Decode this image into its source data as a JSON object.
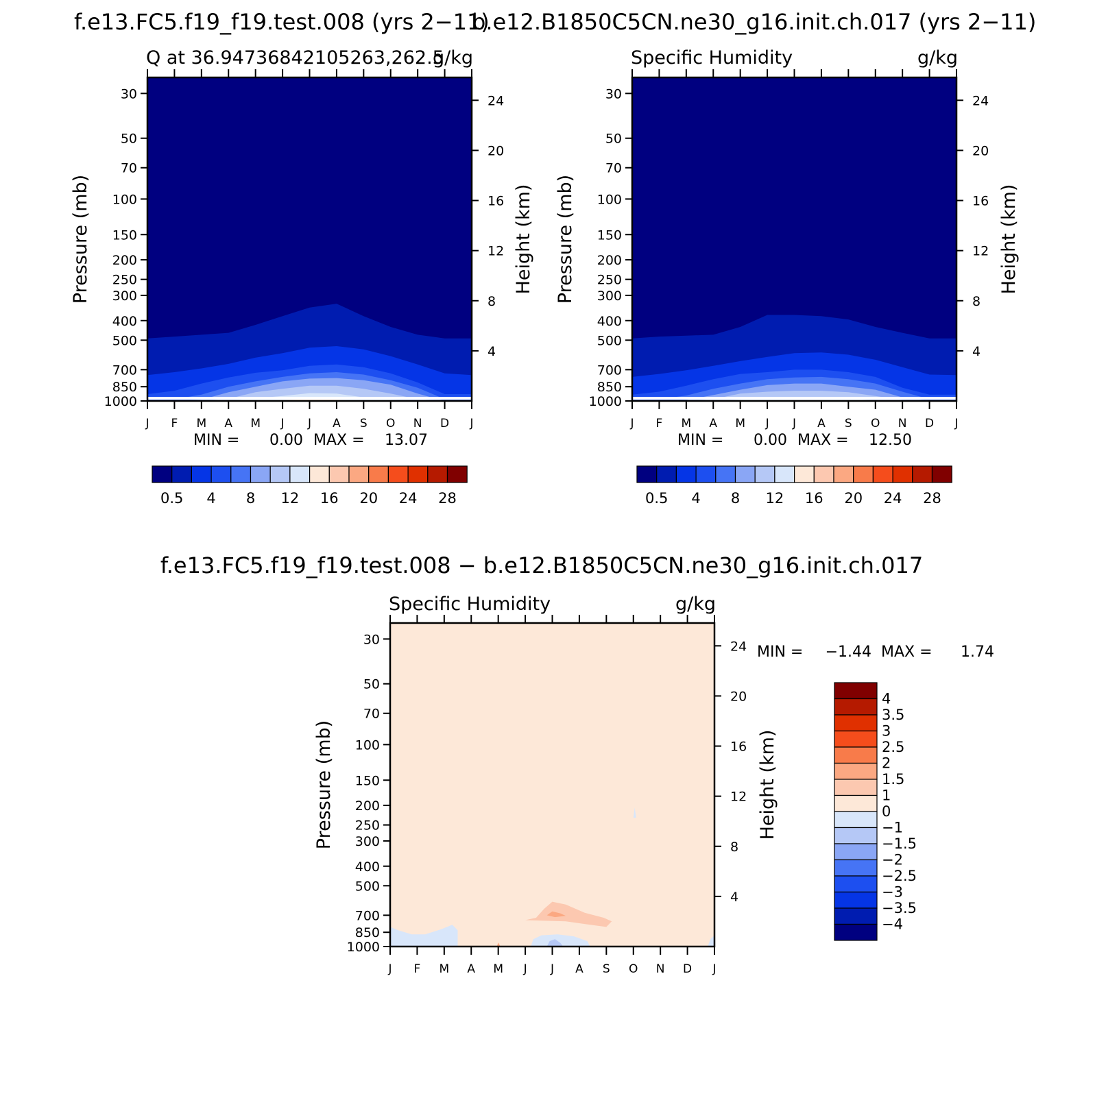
{
  "page": {
    "title_left": "f.e13.FC5.f19_f19.test.008 (yrs 2-11)",
    "title_right": "b.e12.B1850C5CN.ne30_g16.init.ch.017 (yrs 2-11)",
    "title_diff": "f.e13.FC5.f19_f19.test.008 - b.e12.B1850C5CN.ne30_g16.init.ch.017"
  },
  "colors": {
    "abs_levels": [
      "#000080",
      "#001cb0",
      "#0535e6",
      "#1d4ff0",
      "#4674f5",
      "#8aa6f5",
      "#b5c8f6",
      "#d8e6fa",
      "#fde8d8",
      "#fcc8b0",
      "#fba882",
      "#f87b4a",
      "#f54d1c",
      "#e03000",
      "#b51a00",
      "#800000"
    ],
    "diff_levels": [
      "#000080",
      "#001cb0",
      "#0535e6",
      "#1d4ff0",
      "#4674f5",
      "#8aa6f5",
      "#b5c8f6",
      "#d8e6fa",
      "#fde8d8",
      "#fcc8b0",
      "#fba882",
      "#f87b4a",
      "#f54d1c",
      "#e03000",
      "#b51a00",
      "#800000"
    ]
  },
  "chart_data": [
    {
      "type": "heatmap",
      "panel": "left",
      "title": "Q at 36.94736842105263,262.5",
      "units": "g/kg",
      "xlabel": "",
      "ylabel": "Pressure (mb)",
      "ylabel_right": "Height (km)",
      "x_ticks": [
        "J",
        "F",
        "M",
        "A",
        "M",
        "J",
        "J",
        "A",
        "S",
        "O",
        "N",
        "D",
        "J"
      ],
      "pressure_ticks": [
        30,
        50,
        70,
        100,
        150,
        200,
        250,
        300,
        400,
        500,
        700,
        850,
        1000
      ],
      "height_ticks": [
        4,
        8,
        12,
        16,
        20,
        24
      ],
      "ylim": [
        25,
        1000
      ],
      "min_label": "MIN =",
      "min_value": "0.00",
      "max_label": "MAX =",
      "max_value": "13.07",
      "contour_levels": [
        0.5,
        2,
        4,
        6,
        8,
        10,
        12,
        14,
        16,
        18,
        20,
        22,
        24,
        26,
        28
      ],
      "colorbar_labels": [
        "0.5",
        "4",
        "8",
        "12",
        "16",
        "20",
        "24",
        "28"
      ],
      "contour_tops_mb": [
        [
          490,
          480,
          470,
          460,
          420,
          380,
          345,
          330,
          380,
          430,
          470,
          490,
          490
        ],
        [
          745,
          720,
          690,
          655,
          610,
          580,
          545,
          535,
          555,
          600,
          660,
          730,
          745
        ],
        [
          925,
          890,
          820,
          765,
          725,
          705,
          670,
          660,
          680,
          730,
          810,
          925,
          925
        ],
        [
          980,
          980,
          930,
          850,
          800,
          760,
          730,
          720,
          740,
          790,
          860,
          980,
          980
        ],
        [
          1000,
          1000,
          985,
          905,
          850,
          800,
          775,
          770,
          790,
          830,
          920,
          1000,
          1000
        ],
        [
          1000,
          1000,
          1000,
          975,
          905,
          870,
          840,
          840,
          870,
          920,
          980,
          1000,
          1000
        ],
        [
          1000,
          1000,
          1000,
          1000,
          970,
          945,
          915,
          920,
          960,
          985,
          1000,
          1000,
          1000
        ],
        [
          1000,
          1000,
          1000,
          1000,
          1000,
          990,
          980,
          985,
          1000,
          1000,
          1000,
          1000,
          1000
        ]
      ]
    },
    {
      "type": "heatmap",
      "panel": "right",
      "title": "Specific Humidity",
      "units": "g/kg",
      "xlabel": "",
      "ylabel": "Pressure (mb)",
      "ylabel_right": "Height (km)",
      "x_ticks": [
        "J",
        "F",
        "M",
        "A",
        "M",
        "J",
        "J",
        "A",
        "S",
        "O",
        "N",
        "D",
        "J"
      ],
      "pressure_ticks": [
        30,
        50,
        70,
        100,
        150,
        200,
        250,
        300,
        400,
        500,
        700,
        850,
        1000
      ],
      "height_ticks": [
        4,
        8,
        12,
        16,
        20,
        24
      ],
      "ylim": [
        25,
        1000
      ],
      "min_label": "MIN =",
      "min_value": "0.00",
      "max_label": "MAX =",
      "max_value": "12.50",
      "contour_levels": [
        0.5,
        2,
        4,
        6,
        8,
        10,
        12,
        14,
        16,
        18,
        20,
        22,
        24,
        26,
        28
      ],
      "colorbar_labels": [
        "0.5",
        "4",
        "8",
        "12",
        "16",
        "20",
        "24",
        "28"
      ],
      "contour_tops_mb": [
        [
          490,
          480,
          475,
          470,
          430,
          375,
          375,
          380,
          395,
          430,
          460,
          490,
          490
        ],
        [
          760,
          735,
          705,
          670,
          635,
          605,
          580,
          575,
          590,
          625,
          680,
          740,
          745
        ],
        [
          930,
          900,
          840,
          780,
          735,
          720,
          700,
          700,
          720,
          760,
          860,
          930,
          930
        ],
        [
          980,
          980,
          940,
          870,
          820,
          780,
          765,
          760,
          780,
          820,
          900,
          980,
          980
        ],
        [
          1000,
          1000,
          990,
          935,
          880,
          835,
          820,
          820,
          850,
          880,
          960,
          1000,
          1000
        ],
        [
          1000,
          1000,
          1000,
          980,
          920,
          900,
          890,
          890,
          905,
          945,
          990,
          1000,
          1000
        ],
        [
          1000,
          1000,
          1000,
          1000,
          985,
          960,
          955,
          955,
          975,
          995,
          1000,
          1000,
          1000
        ],
        [
          1000,
          1000,
          1000,
          1000,
          1000,
          995,
          990,
          990,
          1000,
          1000,
          1000,
          1000,
          1000
        ]
      ]
    },
    {
      "type": "heatmap",
      "panel": "diff",
      "title": "Specific Humidity",
      "units": "g/kg",
      "xlabel": "",
      "ylabel": "Pressure (mb)",
      "ylabel_right": "Height (km)",
      "x_ticks": [
        "J",
        "F",
        "M",
        "A",
        "M",
        "J",
        "J",
        "A",
        "S",
        "O",
        "N",
        "D",
        "J"
      ],
      "pressure_ticks": [
        30,
        50,
        70,
        100,
        150,
        200,
        250,
        300,
        400,
        500,
        700,
        850,
        1000
      ],
      "height_ticks": [
        4,
        8,
        12,
        16,
        20,
        24
      ],
      "ylim": [
        25,
        1000
      ],
      "min_label": "MIN =",
      "min_value": "-1.44",
      "max_label": "MAX =",
      "max_value": "1.74",
      "contour_levels": [
        -4,
        -3.5,
        -3,
        -2.5,
        -2,
        -1.5,
        -1,
        0,
        1,
        1.5,
        2,
        2.5,
        3,
        3.5,
        4
      ],
      "colorbar_labels": [
        "4",
        "3.5",
        "3",
        "2.5",
        "2",
        "1.5",
        "1",
        "0",
        "-1",
        "-1.5",
        "-2",
        "-2.5",
        "-3",
        "-3.5",
        "-4"
      ],
      "background_level": "0 to 1",
      "features": [
        {
          "range": "-1 to 0",
          "months": "Jan-Mar",
          "pressure_mb": [
            780,
            1000
          ]
        },
        {
          "range": "-1 to 0",
          "months": "Jun-Aug",
          "pressure_mb": [
            880,
            1000
          ]
        },
        {
          "range": "-1.5 to -1",
          "months": "Jul",
          "pressure_mb": [
            920,
            1000
          ]
        },
        {
          "range": "1 to 1.5",
          "months": "Jun-Sep",
          "pressure_mb": [
            600,
            830
          ]
        },
        {
          "range": "1.5 to 2",
          "months": "Jul",
          "pressure_mb": [
            660,
            730
          ]
        }
      ]
    }
  ]
}
